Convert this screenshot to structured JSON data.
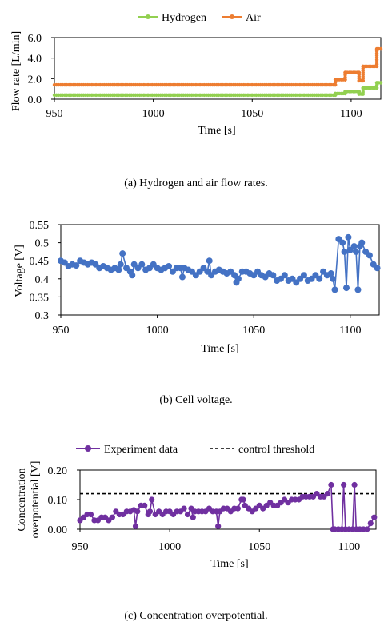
{
  "chart_data": [
    {
      "type": "line",
      "caption": "(a) Hydrogen and air flow rates.",
      "xlabel": "Time [s]",
      "ylabel": "Flow rate [L/min]",
      "xlim": [
        950,
        1115
      ],
      "ylim": [
        0,
        6
      ],
      "xticks": [
        "950",
        "1000",
        "1050",
        "1100"
      ],
      "yticks": [
        "0.0",
        "2.0",
        "4.0",
        "6.0"
      ],
      "ytick_values": [
        0,
        2,
        4,
        6
      ],
      "xtick_values": [
        950,
        1000,
        1050,
        1100
      ],
      "legend_position": "top",
      "series": [
        {
          "name": "Hydrogen",
          "color": "#92d050",
          "marker": "circle",
          "step": true,
          "x": [
            950,
            1092,
            1092,
            1097,
            1097,
            1104,
            1104,
            1106,
            1106,
            1113,
            1113,
            1115
          ],
          "y": [
            0.4,
            0.4,
            0.55,
            0.55,
            0.75,
            0.75,
            0.5,
            0.5,
            1.1,
            1.1,
            1.6,
            1.6
          ]
        },
        {
          "name": "Air",
          "color": "#ed7d31",
          "marker": "circle",
          "step": true,
          "x": [
            950,
            1092,
            1092,
            1097,
            1097,
            1104,
            1104,
            1106,
            1106,
            1113,
            1113,
            1115
          ],
          "y": [
            1.4,
            1.4,
            1.9,
            1.9,
            2.6,
            2.6,
            1.8,
            1.8,
            3.2,
            3.2,
            4.9,
            4.9
          ]
        }
      ]
    },
    {
      "type": "line",
      "caption": "(b) Cell voltage.",
      "xlabel": "Time [s]",
      "ylabel": "Voltage [V]",
      "xlim": [
        950,
        1115
      ],
      "ylim": [
        0.3,
        0.55
      ],
      "xticks": [
        "950",
        "1000",
        "1050",
        "1100"
      ],
      "yticks": [
        "0.3",
        "0.35",
        "0.4",
        "0.45",
        "0.5",
        "0.55"
      ],
      "ytick_values": [
        0.3,
        0.35,
        0.4,
        0.45,
        0.5,
        0.55
      ],
      "xtick_values": [
        950,
        1000,
        1050,
        1100
      ],
      "series": [
        {
          "name": "",
          "color": "#4472c4",
          "marker": "circle",
          "x": [
            950,
            952,
            954,
            956,
            958,
            960,
            962,
            964,
            966,
            968,
            970,
            972,
            974,
            976,
            978,
            980,
            981,
            982,
            984,
            986,
            987,
            988,
            990,
            992,
            994,
            996,
            998,
            1000,
            1002,
            1004,
            1006,
            1008,
            1010,
            1012,
            1013,
            1014,
            1016,
            1018,
            1020,
            1022,
            1024,
            1026,
            1027,
            1028,
            1030,
            1032,
            1034,
            1036,
            1038,
            1040,
            1041,
            1042,
            1044,
            1046,
            1048,
            1050,
            1052,
            1054,
            1056,
            1058,
            1060,
            1062,
            1064,
            1066,
            1068,
            1070,
            1072,
            1074,
            1076,
            1078,
            1080,
            1082,
            1084,
            1086,
            1088,
            1090,
            1091,
            1092,
            1094,
            1096,
            1097,
            1098,
            1099,
            1100,
            1102,
            1103,
            1104,
            1105,
            1106,
            1108,
            1110,
            1112,
            1114
          ],
          "y": [
            0.45,
            0.445,
            0.435,
            0.44,
            0.437,
            0.45,
            0.445,
            0.44,
            0.445,
            0.44,
            0.43,
            0.435,
            0.43,
            0.425,
            0.43,
            0.425,
            0.44,
            0.47,
            0.43,
            0.42,
            0.41,
            0.44,
            0.43,
            0.44,
            0.425,
            0.43,
            0.44,
            0.43,
            0.425,
            0.43,
            0.435,
            0.42,
            0.43,
            0.43,
            0.405,
            0.43,
            0.425,
            0.42,
            0.41,
            0.42,
            0.43,
            0.42,
            0.45,
            0.41,
            0.42,
            0.425,
            0.42,
            0.415,
            0.42,
            0.41,
            0.39,
            0.4,
            0.42,
            0.42,
            0.415,
            0.41,
            0.42,
            0.41,
            0.405,
            0.415,
            0.41,
            0.395,
            0.4,
            0.41,
            0.395,
            0.4,
            0.39,
            0.4,
            0.41,
            0.395,
            0.4,
            0.41,
            0.4,
            0.42,
            0.41,
            0.415,
            0.4,
            0.37,
            0.51,
            0.5,
            0.475,
            0.375,
            0.515,
            0.48,
            0.49,
            0.475,
            0.37,
            0.49,
            0.5,
            0.475,
            0.465,
            0.44,
            0.43
          ]
        }
      ]
    },
    {
      "type": "line",
      "caption": "(c) Concentration overpotential.",
      "xlabel": "Time [s]",
      "ylabel_lines": [
        "Concentration",
        "overpotential [V]"
      ],
      "xlim": [
        950,
        1115
      ],
      "ylim": [
        0,
        0.2
      ],
      "xticks": [
        "950",
        "1000",
        "1050",
        "1100"
      ],
      "yticks": [
        "0.00",
        "0.10",
        "0.20"
      ],
      "ytick_values": [
        0,
        0.1,
        0.2
      ],
      "xtick_values": [
        950,
        1000,
        1050,
        1100
      ],
      "legend_position": "top",
      "threshold": 0.12,
      "series": [
        {
          "name": "Experiment data",
          "color": "#7030a0",
          "marker": "circle",
          "x": [
            950,
            952,
            954,
            956,
            958,
            960,
            962,
            964,
            966,
            968,
            970,
            972,
            974,
            976,
            978,
            980,
            981,
            982,
            984,
            986,
            988,
            989,
            990,
            992,
            994,
            996,
            998,
            1000,
            1002,
            1004,
            1006,
            1008,
            1010,
            1012,
            1013,
            1014,
            1016,
            1018,
            1020,
            1022,
            1024,
            1026,
            1027,
            1028,
            1030,
            1032,
            1034,
            1036,
            1038,
            1040,
            1041,
            1042,
            1044,
            1046,
            1048,
            1050,
            1052,
            1054,
            1056,
            1058,
            1060,
            1062,
            1064,
            1066,
            1068,
            1070,
            1072,
            1074,
            1076,
            1078,
            1080,
            1082,
            1084,
            1086,
            1088,
            1090,
            1091,
            1092,
            1094,
            1096,
            1097,
            1098,
            1100,
            1102,
            1103,
            1104,
            1106,
            1108,
            1110,
            1112,
            1114
          ],
          "y": [
            0.03,
            0.04,
            0.05,
            0.05,
            0.03,
            0.03,
            0.04,
            0.04,
            0.03,
            0.04,
            0.06,
            0.05,
            0.05,
            0.06,
            0.06,
            0.065,
            0.01,
            0.06,
            0.08,
            0.08,
            0.05,
            0.06,
            0.1,
            0.05,
            0.06,
            0.05,
            0.06,
            0.06,
            0.05,
            0.06,
            0.06,
            0.07,
            0.05,
            0.07,
            0.04,
            0.06,
            0.06,
            0.06,
            0.06,
            0.07,
            0.06,
            0.06,
            0.01,
            0.06,
            0.07,
            0.07,
            0.06,
            0.07,
            0.07,
            0.1,
            0.1,
            0.08,
            0.07,
            0.06,
            0.07,
            0.08,
            0.07,
            0.08,
            0.09,
            0.08,
            0.08,
            0.09,
            0.1,
            0.09,
            0.1,
            0.1,
            0.1,
            0.11,
            0.11,
            0.11,
            0.11,
            0.12,
            0.11,
            0.11,
            0.12,
            0.15,
            0.0,
            0.0,
            0.0,
            0.0,
            0.15,
            0.0,
            0.0,
            0.0,
            0.15,
            0.0,
            0.0,
            0.0,
            0.0,
            0.02,
            0.04
          ]
        },
        {
          "name": "control threshold",
          "color": "#000000",
          "dashed": true
        }
      ]
    }
  ]
}
